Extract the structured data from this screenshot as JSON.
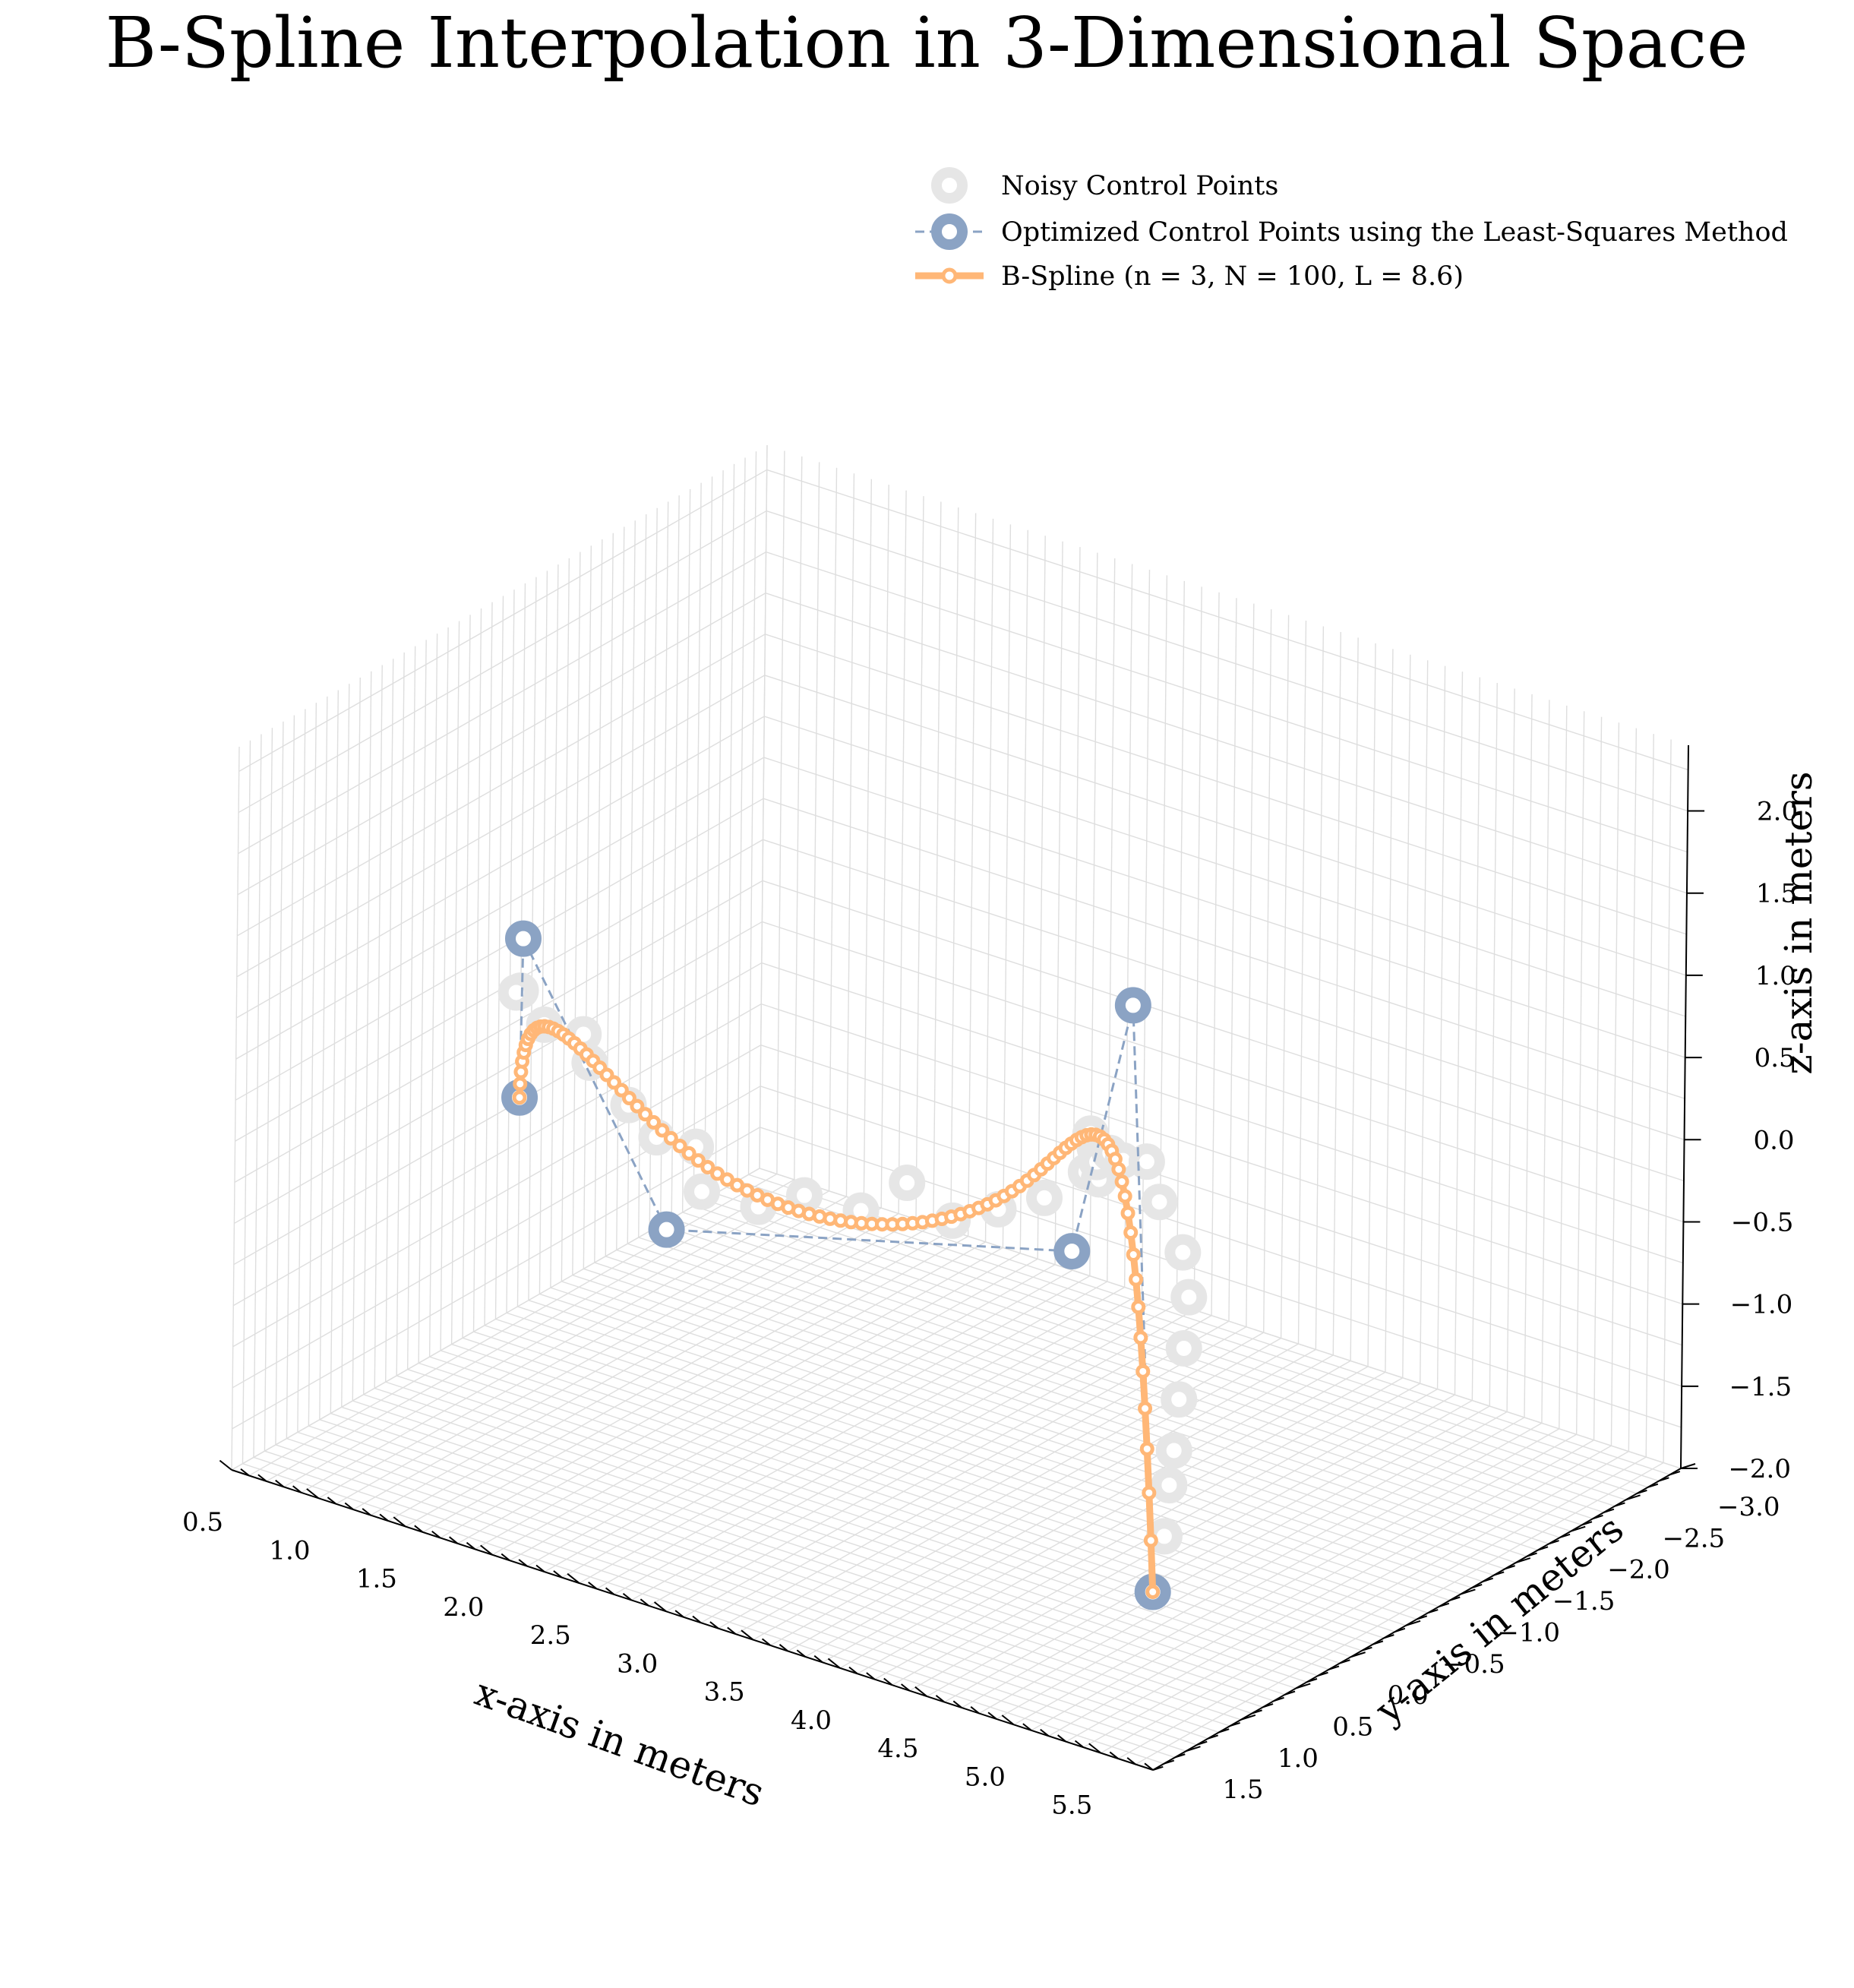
{
  "chart_data": {
    "type": "scatter",
    "projection": "3d",
    "title": "B-Spline Interpolation in 3-Dimensional Space",
    "xlabel": "x-axis in meters",
    "ylabel": "y-axis in meters",
    "zlabel": "z-axis in meters",
    "xlim": [
      0.5,
      5.8
    ],
    "ylim": [
      -3.0,
      1.8
    ],
    "zlim": [
      -2.0,
      2.4
    ],
    "x_ticks": [
      "0.5",
      "1.0",
      "1.5",
      "2.0",
      "2.5",
      "3.0",
      "3.5",
      "4.0",
      "4.5",
      "5.0",
      "5.5"
    ],
    "y_ticks": [
      "−3.0",
      "−2.5",
      "−2.0",
      "−1.5",
      "−1.0",
      "−0.5",
      "0.0",
      "0.5",
      "1.0",
      "1.5"
    ],
    "z_ticks": [
      "−2.0",
      "−1.5",
      "−1.0",
      "−0.5",
      "0.0",
      "0.5",
      "1.0",
      "1.5",
      "2.0"
    ],
    "grid": true,
    "legend_position": "top-right",
    "colors": {
      "noisy": "#e6e6e6",
      "control": "#8ba3c4",
      "spline": "#ffb777",
      "grid": "#dedede"
    },
    "series": [
      {
        "name": "Noisy Control Points",
        "marker": "ring",
        "points": [
          [
            1.0,
            0.0,
            0.4
          ],
          [
            1.1,
            0.2,
            0.5
          ],
          [
            1.2,
            0.1,
            0.3
          ],
          [
            1.3,
            -0.1,
            0.2
          ],
          [
            1.4,
            0.0,
            0.1
          ],
          [
            1.5,
            -0.2,
            -0.2
          ],
          [
            1.6,
            -0.3,
            -0.4
          ],
          [
            1.7,
            -0.5,
            -0.5
          ],
          [
            1.8,
            -0.4,
            -0.7
          ],
          [
            2.0,
            -0.6,
            -0.8
          ],
          [
            2.2,
            -0.7,
            -0.7
          ],
          [
            2.4,
            -0.9,
            -0.8
          ],
          [
            2.6,
            -1.0,
            -0.6
          ],
          [
            2.8,
            -1.1,
            -0.8
          ],
          [
            3.0,
            -1.2,
            -0.7
          ],
          [
            3.2,
            -1.3,
            -0.6
          ],
          [
            3.5,
            -1.2,
            -0.3
          ],
          [
            3.7,
            -1.0,
            -0.2
          ],
          [
            3.8,
            -0.8,
            0.1
          ],
          [
            3.9,
            -0.6,
            0.3
          ],
          [
            4.0,
            -0.5,
            0.2
          ],
          [
            4.2,
            -0.3,
            0.4
          ],
          [
            4.4,
            -0.1,
            0.5
          ],
          [
            4.6,
            0.0,
            0.6
          ],
          [
            4.8,
            0.2,
            0.5
          ],
          [
            5.0,
            0.3,
            0.3
          ],
          [
            5.1,
            0.4,
            0.1
          ],
          [
            5.2,
            0.6,
            -0.1
          ],
          [
            5.3,
            0.8,
            -0.3
          ],
          [
            5.4,
            1.0,
            -0.5
          ],
          [
            5.5,
            1.2,
            -0.6
          ],
          [
            5.6,
            1.4,
            -0.8
          ]
        ]
      },
      {
        "name": "Optimized Control Points using the Least-Squares Method",
        "marker": "ring",
        "line": "dashed",
        "points": [
          [
            1.0,
            0.0,
            -0.25
          ],
          [
            1.2,
            0.3,
            0.9
          ],
          [
            1.6,
            -0.4,
            -1.0
          ],
          [
            3.8,
            -0.6,
            -0.45
          ],
          [
            4.7,
            0.3,
            1.7
          ],
          [
            5.6,
            1.5,
            -1.1
          ]
        ]
      },
      {
        "name": "B-Spline (n = 3, N = 100, L = 8.6)",
        "marker": "ring",
        "line": "solid",
        "points": []
      }
    ]
  }
}
